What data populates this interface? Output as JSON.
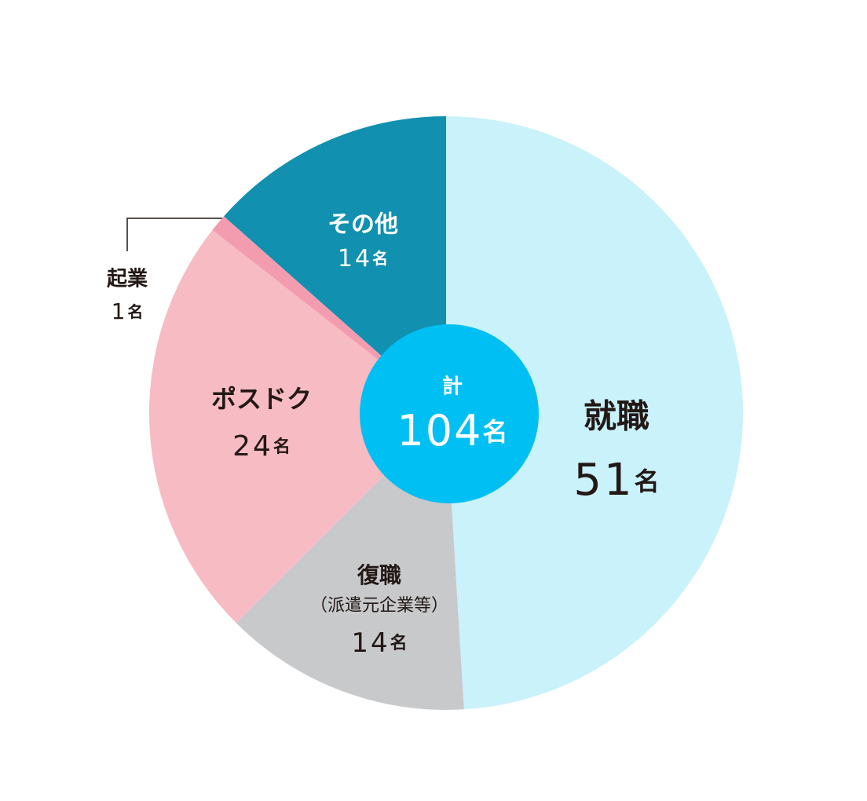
{
  "chart_data": {
    "type": "pie",
    "categories": [
      "就職",
      "復職",
      "ポスドク",
      "起業",
      "その他"
    ],
    "values": [
      51,
      14,
      24,
      1,
      14
    ],
    "colors": [
      "#c9f2fb",
      "#c8c9cb",
      "#f7bbc4",
      "#f39cb0",
      "#1190b0"
    ],
    "unit": "名",
    "note": "（派遣元企業等）",
    "total_label": "計",
    "total": 104,
    "center_color": "#00bff3"
  }
}
